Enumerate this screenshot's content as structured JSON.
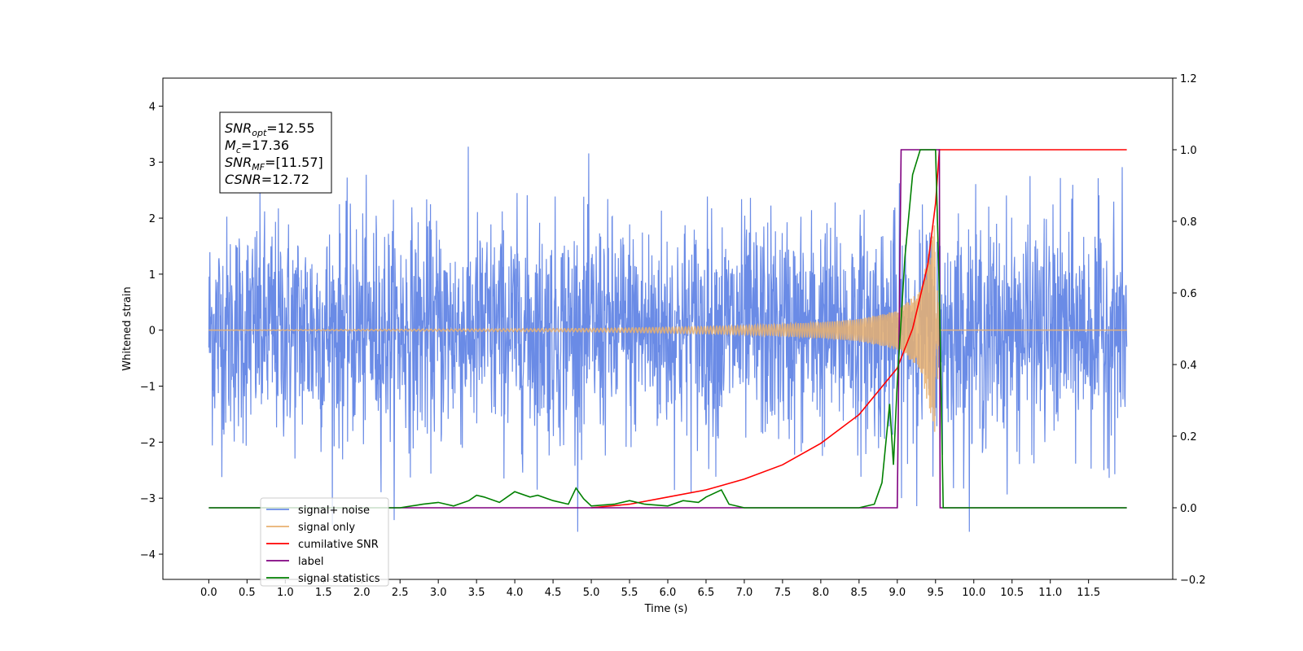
{
  "chart_data": {
    "type": "line",
    "title": "",
    "xlabel": "Time (s)",
    "ylabel": "Whitened strain",
    "xlim": [
      -0.6,
      12.6
    ],
    "ylim": [
      -4.45,
      4.5
    ],
    "y2lim": [
      -0.2,
      1.2
    ],
    "grid": false,
    "legend_position": "lower-left",
    "x_ticks": [
      "0.0",
      "0.5",
      "1.0",
      "1.5",
      "2.0",
      "2.5",
      "3.0",
      "3.5",
      "4.0",
      "4.5",
      "5.0",
      "5.5",
      "6.0",
      "6.5",
      "7.0",
      "7.5",
      "8.0",
      "8.5",
      "9.0",
      "9.5",
      "10.0",
      "10.5",
      "11.0",
      "11.5"
    ],
    "y_ticks": [
      "4",
      "3",
      "2",
      "1",
      "0",
      "−1",
      "−2",
      "−3",
      "−4"
    ],
    "y2_ticks": [
      "1.2",
      "1.0",
      "0.8",
      "0.6",
      "0.4",
      "0.2",
      "0.0",
      "−0.2"
    ],
    "annotation": [
      {
        "name": "SNR",
        "sub": "opt",
        "value": "=12.55"
      },
      {
        "name": "M",
        "sub": "c",
        "value": "=17.36"
      },
      {
        "name": "SNR",
        "sub": "MF",
        "value": "=[11.57]"
      },
      {
        "name": "CSNR",
        "sub": "",
        "value": "=12.72"
      }
    ],
    "series": [
      {
        "name": "signal+ noise",
        "axis": "left",
        "color": "#6a8be6",
        "x_range": [
          0.0,
          12.0
        ],
        "noise_std": 1.0,
        "envelope_min": -3.6,
        "envelope_max": 4.1
      },
      {
        "name": "signal only",
        "axis": "left",
        "color": "#e8b070",
        "x": [
          0.0,
          5.0,
          6.0,
          7.0,
          8.0,
          8.5,
          9.0,
          9.3,
          9.5,
          9.55,
          12.0
        ],
        "amplitude": [
          0.0,
          0.03,
          0.05,
          0.08,
          0.14,
          0.2,
          0.35,
          0.7,
          2.0,
          0.0,
          0.0
        ]
      },
      {
        "name": "cumilative SNR",
        "axis": "right",
        "color": "#ff0000",
        "x": [
          5.0,
          5.5,
          6.0,
          6.5,
          7.0,
          7.5,
          8.0,
          8.5,
          9.0,
          9.2,
          9.4,
          9.5,
          9.55,
          12.0
        ],
        "y": [
          0.0,
          0.01,
          0.03,
          0.05,
          0.08,
          0.12,
          0.18,
          0.26,
          0.39,
          0.5,
          0.68,
          0.85,
          1.0,
          1.0
        ]
      },
      {
        "name": "label",
        "axis": "right",
        "color": "#800080",
        "x": [
          0.0,
          9.0,
          9.05,
          9.55,
          9.56,
          12.0
        ],
        "y": [
          0.0,
          0.0,
          1.0,
          1.0,
          0.0,
          0.0
        ]
      },
      {
        "name": "signal statistics",
        "axis": "right",
        "color": "#008000",
        "x": [
          0.0,
          2.5,
          2.8,
          3.0,
          3.2,
          3.4,
          3.5,
          3.6,
          3.8,
          4.0,
          4.2,
          4.3,
          4.5,
          4.7,
          4.8,
          4.9,
          5.0,
          5.3,
          5.5,
          5.7,
          6.0,
          6.2,
          6.4,
          6.5,
          6.7,
          6.8,
          7.0,
          8.5,
          8.7,
          8.8,
          8.9,
          8.95,
          9.0,
          9.1,
          9.2,
          9.3,
          9.45,
          9.5,
          9.55,
          9.6,
          12.0
        ],
        "y": [
          0.0,
          0.0,
          0.01,
          0.015,
          0.005,
          0.02,
          0.035,
          0.03,
          0.015,
          0.045,
          0.03,
          0.035,
          0.02,
          0.01,
          0.055,
          0.025,
          0.005,
          0.01,
          0.02,
          0.01,
          0.005,
          0.02,
          0.015,
          0.03,
          0.05,
          0.01,
          0.0,
          0.0,
          0.01,
          0.07,
          0.29,
          0.12,
          0.35,
          0.7,
          0.93,
          1.0,
          1.0,
          1.0,
          0.6,
          0.0,
          0.0
        ]
      }
    ]
  }
}
